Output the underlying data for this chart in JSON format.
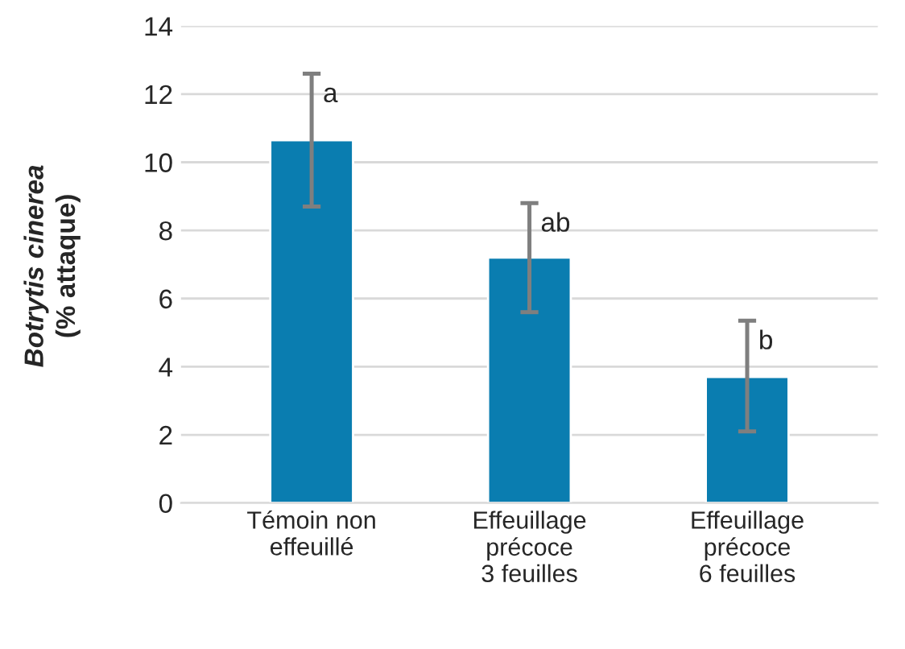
{
  "chart_data": {
    "type": "bar",
    "ylabel": "Botrytis cinerea\n(% attaque)",
    "categories": [
      "Témoin non\neffeuillé",
      "Effeuillage\nprécoce\n3 feuilles",
      "Effeuillage\nprécoce\n6 feuilles"
    ],
    "values": [
      10.65,
      7.2,
      3.7
    ],
    "errors": [
      [
        8.7,
        12.6
      ],
      [
        5.6,
        8.8
      ],
      [
        2.1,
        5.35
      ]
    ],
    "color": "#0a7db0",
    "ylim": [
      0,
      14
    ],
    "yticks": [
      0,
      2,
      4,
      6,
      8,
      10,
      12,
      14
    ],
    "grid": "y",
    "annotations": [
      {
        "text": "a",
        "x": "Témoin non\neffeuillé",
        "y": 12.6
      },
      {
        "text": "ab",
        "x": "Effeuillage\nprécoce\n3 feuilles",
        "y": 8.8
      },
      {
        "text": "b",
        "x": "Effeuillage\nprécoce\n6 feuilles",
        "y": 5.35
      }
    ]
  }
}
